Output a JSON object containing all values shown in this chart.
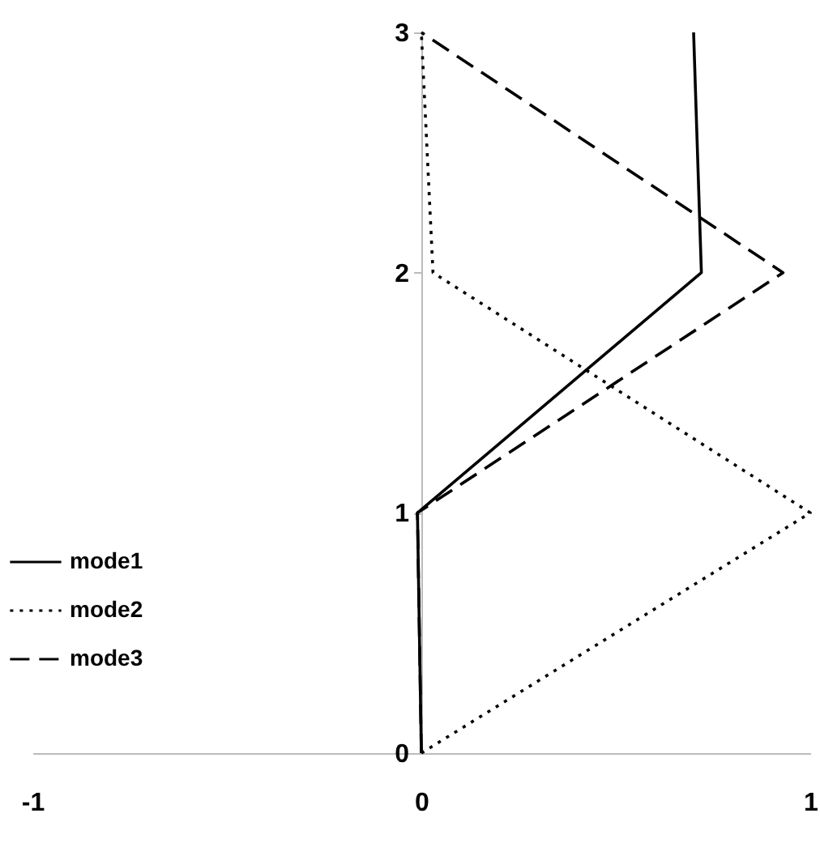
{
  "chart_data": {
    "type": "line",
    "xlim": [
      -1,
      1
    ],
    "xticks": [
      -1,
      0,
      1
    ],
    "ylim": [
      0,
      3
    ],
    "yticks": [
      0,
      1,
      2,
      3
    ],
    "grid": false,
    "legend": "bottom left",
    "marker": "none",
    "series": [
      {
        "name": "mode1",
        "color": "#000000",
        "line_style": "solid",
        "x": [
          0,
          -0.01,
          0.72,
          0.7
        ],
        "values": [
          0,
          1,
          2,
          3
        ]
      },
      {
        "name": "mode2",
        "color": "#000000",
        "line_style": "dotted",
        "x": [
          0,
          1,
          0.03,
          0
        ],
        "values": [
          0,
          1,
          2,
          3
        ]
      },
      {
        "name": "mode3",
        "color": "#000000",
        "line_style": "dashed",
        "x": [
          0,
          -0.01,
          0.93,
          0
        ],
        "values": [
          0,
          1,
          2,
          3
        ]
      }
    ]
  }
}
